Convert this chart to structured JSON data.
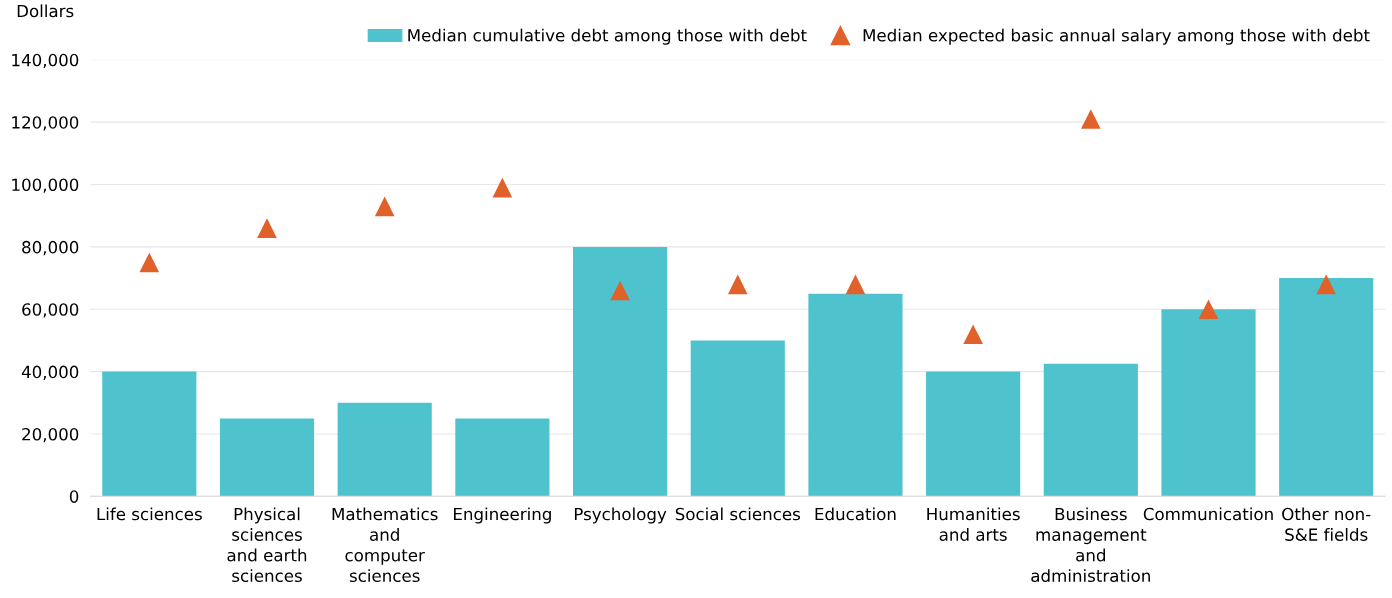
{
  "chart_data": {
    "type": "bar",
    "ylabel": "Dollars",
    "categories": [
      "Life sciences",
      "Physical\nsciences\nand earth\nsciences",
      "Mathematics\nand\ncomputer\nsciences",
      "Engineering",
      "Psychology",
      "Social sciences",
      "Education",
      "Humanities\nand arts",
      "Business\nmanagement\nand\nadministration",
      "Communication",
      "Other non-\nS&E fields"
    ],
    "series": [
      {
        "name": "Median cumulative debt among those with debt",
        "color": "#4fc3cd",
        "values": [
          40000,
          25000,
          30000,
          25000,
          80000,
          50000,
          65000,
          40000,
          42500,
          60000,
          70000
        ]
      },
      {
        "name": "Median expected basic annual salary among those with debt",
        "type": "scatter",
        "marker": "triangle",
        "color": "#e0622a",
        "values": [
          75000,
          86000,
          93000,
          99000,
          66000,
          68000,
          68000,
          52000,
          121000,
          60000,
          68000
        ]
      }
    ],
    "ylim": [
      0,
      140000
    ],
    "yticks": [
      {
        "value": 0,
        "label": "0"
      },
      {
        "value": 20000,
        "label": "20,000"
      },
      {
        "value": 40000,
        "label": "40,000"
      },
      {
        "value": 60000,
        "label": "60,000"
      },
      {
        "value": 80000,
        "label": "80,000"
      },
      {
        "value": 100000,
        "label": "100,000"
      },
      {
        "value": 120000,
        "label": "120,000"
      },
      {
        "value": 140000,
        "label": "140,000"
      }
    ],
    "grid": "y",
    "legend": "top right"
  }
}
